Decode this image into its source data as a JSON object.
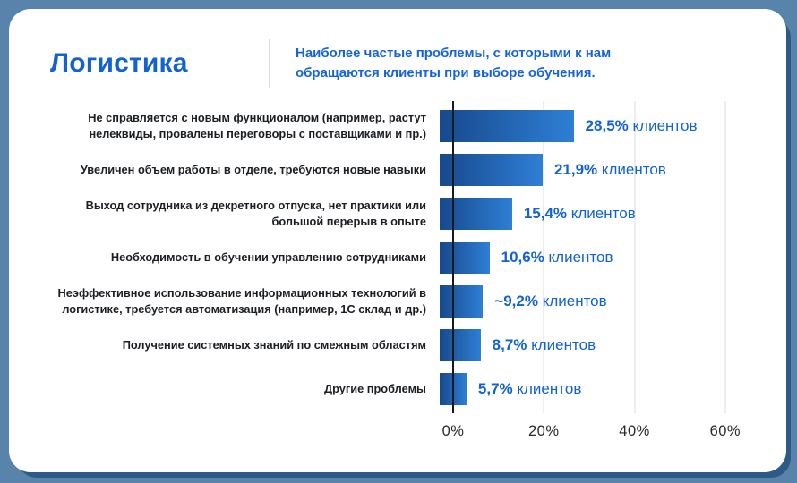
{
  "header": {
    "title": "Логистика",
    "subtitle": "Наиболее частые проблемы, с которыми к нам обращаются клиенты при выборе обучения."
  },
  "chart_data": {
    "type": "bar",
    "orientation": "horizontal",
    "title": "Логистика",
    "subtitle": "Наиболее частые проблемы, с которыми к нам обращаются клиенты при выборе обучения.",
    "categories": [
      "Не справляется с новым функционалом (например, растут нелеквиды, провалены переговоры с поставщиками и пр.)",
      "Увеличен объем работы в отделе, требуются новые навыки",
      "Выход сотрудника из декретного отпуска, нет практики или большой перерыв в опыте",
      "Необходимость в обучении управлению сотрудниками",
      "Неэффективное использование информационных технологий в логистике, требуется автоматизация (например, 1С склад и др.)",
      "Получение системных знаний по смежным областям",
      "Другие проблемы"
    ],
    "values": [
      28.5,
      21.9,
      15.4,
      10.6,
      9.2,
      8.7,
      5.7
    ],
    "value_labels": [
      "28,5%",
      "21,9%",
      "15,4%",
      "10,6%",
      "~9,2%",
      "8,7%",
      "5,7%"
    ],
    "value_suffix": "клиентов",
    "x_ticks": [
      "0%",
      "20%",
      "40%",
      "60%"
    ],
    "x_tick_values": [
      0,
      20,
      40,
      60
    ],
    "xlim": [
      0,
      70.3
    ],
    "grid": true,
    "legend": "none",
    "colors": {
      "accent_blue": "#1262d1",
      "bar_gradient_start": "#17498c",
      "bar_gradient_end": "#2e7fd6",
      "background": "#5884ac",
      "card": "#ffffff",
      "label_text": "#1b1e23",
      "gridline": "#ededee",
      "axis_line": "#17191d"
    }
  }
}
